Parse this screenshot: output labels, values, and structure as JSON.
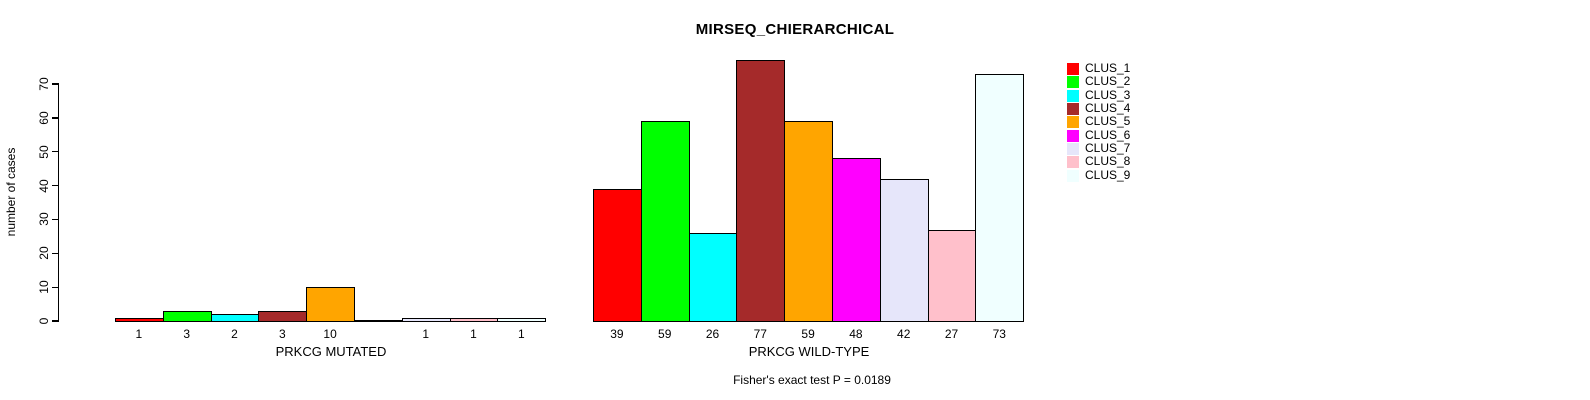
{
  "chart_data": {
    "type": "bar",
    "title": "MIRSEQ_CHIERARCHICAL",
    "ylabel": "number of cases",
    "yticks": [
      0,
      10,
      20,
      30,
      40,
      50,
      60,
      70
    ],
    "ylim": [
      0,
      77
    ],
    "grid": false,
    "legend_position": "right",
    "footnote": "Fisher's exact test P = 0.0189",
    "clusters": [
      {
        "name": "CLUS_1",
        "color": "#FF0000"
      },
      {
        "name": "CLUS_2",
        "color": "#00FF00"
      },
      {
        "name": "CLUS_3",
        "color": "#00FFFF"
      },
      {
        "name": "CLUS_4",
        "color": "#A52A2A"
      },
      {
        "name": "CLUS_5",
        "color": "#FFA500"
      },
      {
        "name": "CLUS_6",
        "color": "#FF00FF"
      },
      {
        "name": "CLUS_7",
        "color": "#E6E6FA"
      },
      {
        "name": "CLUS_8",
        "color": "#FFC0CB"
      },
      {
        "name": "CLUS_9",
        "color": "#F0FFFF"
      }
    ],
    "groups": [
      {
        "label": "PRKCG MUTATED",
        "values": [
          1,
          3,
          2,
          3,
          10,
          0,
          1,
          1,
          1
        ]
      },
      {
        "label": "PRKCG WILD-TYPE",
        "values": [
          39,
          59,
          26,
          77,
          59,
          48,
          42,
          27,
          73
        ]
      }
    ]
  }
}
